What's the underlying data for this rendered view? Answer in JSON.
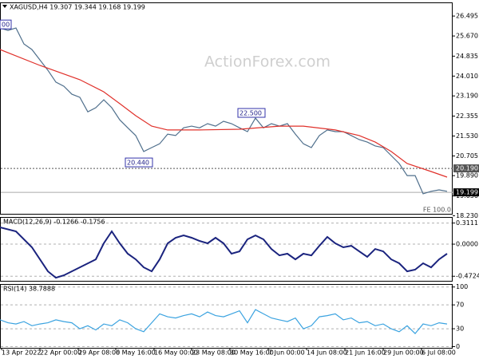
{
  "chart_data": [
    {
      "type": "line",
      "title": "XAGUSD,H4 19.307 19.344 19.168 19.199",
      "watermark": "ActionForex.com",
      "fe_label": "FE 100.0",
      "xlim": [
        0,
        56.7
      ],
      "ylim": [
        18.31,
        27.06
      ],
      "grid": false,
      "yticks": [
        26.495,
        {
          "value": 25.67,
          "label": "25.670"
        },
        24.835,
        {
          "value": 24.01,
          "label": "24.010"
        },
        {
          "value": 23.19,
          "label": "23.190"
        },
        22.355,
        {
          "value": 21.53,
          "label": "21.530"
        },
        20.705,
        {
          "value": 19.89,
          "label": "19.890"
        },
        {
          "value": 19.05,
          "label": "19.050"
        },
        {
          "value": 18.23,
          "label": "18.230"
        }
      ],
      "hlines": [
        {
          "value": 20.19,
          "label": "20.190",
          "style": "dotted",
          "color": "#555555"
        },
        {
          "value": 19.199,
          "label": "19.199",
          "style": "solid",
          "color": "#000000"
        }
      ],
      "annotations": [
        {
          "text": "00",
          "x": 0,
          "y": 26.13
        },
        {
          "text": "20.440",
          "x": 15.7,
          "y": 20.42
        },
        {
          "text": "22.500",
          "x": 29.8,
          "y": 22.47
        }
      ],
      "series": [
        {
          "name": "XAGUSD",
          "color": "#4f6f8c",
          "x": [
            0,
            1,
            2,
            3,
            4,
            5,
            6,
            7,
            8,
            9,
            10,
            11,
            12,
            13,
            14,
            15,
            16,
            17,
            18,
            19,
            20,
            21,
            22,
            23,
            24,
            25,
            26,
            27,
            28,
            29,
            30,
            31,
            32,
            33,
            34,
            35,
            36,
            37,
            38,
            39,
            40,
            41,
            42,
            43,
            44,
            45,
            46,
            47,
            48,
            49,
            50,
            51,
            52,
            53,
            54,
            55,
            56
          ],
          "values": [
            26.0,
            25.9,
            26.0,
            25.34,
            25.11,
            24.68,
            24.25,
            23.76,
            23.59,
            23.26,
            23.13,
            22.53,
            22.7,
            23.03,
            22.7,
            22.2,
            21.87,
            21.55,
            20.89,
            21.05,
            21.21,
            21.61,
            21.55,
            21.87,
            21.94,
            21.87,
            22.04,
            21.94,
            22.14,
            22.04,
            21.87,
            21.71,
            22.27,
            21.87,
            22.04,
            21.94,
            22.04,
            21.61,
            21.21,
            21.05,
            21.55,
            21.78,
            21.71,
            21.71,
            21.55,
            21.38,
            21.28,
            21.12,
            21.05,
            20.72,
            20.39,
            19.89,
            19.89,
            19.14,
            19.24,
            19.3,
            19.24
          ]
        },
        {
          "name": "MA",
          "color": "#e0302a",
          "x": [
            0,
            5,
            10,
            13,
            15,
            17,
            19,
            21,
            25,
            30,
            35,
            38,
            42,
            45,
            47,
            49,
            51,
            54,
            56
          ],
          "values": [
            25.11,
            24.45,
            23.86,
            23.36,
            22.87,
            22.37,
            21.94,
            21.78,
            21.78,
            21.81,
            21.94,
            21.94,
            21.78,
            21.55,
            21.28,
            20.89,
            20.39,
            20.06,
            19.83
          ]
        }
      ]
    },
    {
      "type": "line",
      "title": "MACD(12,26,9) -0.1266 -0.1756",
      "xlim": [
        0,
        56.7
      ],
      "ylim": [
        -0.54,
        0.4
      ],
      "grid": true,
      "yticks": [
        {
          "value": 0.3111,
          "label": "0.3111"
        },
        {
          "value": 0,
          "label": "0.0000"
        },
        {
          "value": -0.4724,
          "label": "-0.4724"
        }
      ],
      "series": [
        {
          "name": "MACD",
          "color": "#1a237e",
          "x": [
            0,
            2,
            4,
            6,
            7,
            8,
            10,
            12,
            13,
            14,
            15,
            16,
            17,
            18,
            19,
            20,
            21,
            22,
            23,
            24,
            25,
            26,
            27,
            28,
            29,
            30,
            31,
            32,
            33,
            34,
            35,
            36,
            37,
            38,
            39,
            40,
            41,
            42,
            43,
            44,
            45,
            46,
            47,
            48,
            49,
            50,
            51,
            52,
            53,
            54,
            55,
            56
          ],
          "values": [
            0.247,
            0.188,
            -0.047,
            -0.4,
            -0.494,
            -0.459,
            -0.341,
            -0.224,
            0.012,
            0.188,
            0.012,
            -0.141,
            -0.224,
            -0.341,
            -0.4,
            -0.224,
            0.012,
            0.094,
            0.129,
            0.094,
            0.047,
            0.012,
            0.094,
            0.012,
            -0.141,
            -0.106,
            0.071,
            0.129,
            0.071,
            -0.071,
            -0.165,
            -0.141,
            -0.224,
            -0.141,
            -0.165,
            -0.024,
            0.106,
            0.012,
            -0.047,
            -0.024,
            -0.106,
            -0.188,
            -0.071,
            -0.106,
            -0.224,
            -0.282,
            -0.4,
            -0.376,
            -0.282,
            -0.341,
            -0.224,
            -0.141
          ]
        }
      ]
    },
    {
      "type": "line",
      "title": "RSI(14) 38.7888",
      "xlim": [
        0,
        56.7
      ],
      "ylim": [
        -2,
        105
      ],
      "grid": true,
      "yticks": [
        100,
        70,
        30,
        0
      ],
      "xticks": [
        {
          "value": 0.2,
          "label": "13 Apr 2022"
        },
        {
          "value": 5.0,
          "label": "22 Apr 00:00"
        },
        {
          "value": 9.8,
          "label": "29 Apr 08:00"
        },
        {
          "value": 14.5,
          "label": "6 May 16:00"
        },
        {
          "value": 19.3,
          "label": "16 May 00:00"
        },
        {
          "value": 24.0,
          "label": "23 May 08:00"
        },
        {
          "value": 28.8,
          "label": "30 May 16:00"
        },
        {
          "value": 33.6,
          "label": "7 Jun 00:00"
        },
        {
          "value": 38.4,
          "label": "14 Jun 08:00"
        },
        {
          "value": 43.2,
          "label": "21 Jun 16:00"
        },
        {
          "value": 48.0,
          "label": "29 Jun 00:00"
        },
        {
          "value": 52.8,
          "label": "6 Jul 08:00"
        }
      ],
      "series": [
        {
          "name": "RSI",
          "color": "#3ba3e0",
          "x": [
            0,
            1,
            2,
            3,
            4,
            5,
            6,
            7,
            8,
            9,
            10,
            11,
            12,
            13,
            14,
            15,
            16,
            17,
            18,
            19,
            20,
            21,
            22,
            23,
            24,
            25,
            26,
            27,
            28,
            29,
            30,
            31,
            32,
            33,
            34,
            35,
            36,
            37,
            38,
            39,
            40,
            41,
            42,
            43,
            44,
            45,
            46,
            47,
            48,
            49,
            50,
            51,
            52,
            53,
            54,
            55,
            56
          ],
          "values": [
            45,
            40,
            38,
            42,
            35,
            38,
            40,
            45,
            42,
            40,
            30,
            35,
            28,
            38,
            35,
            45,
            40,
            30,
            25,
            40,
            55,
            50,
            48,
            52,
            55,
            50,
            58,
            52,
            50,
            55,
            60,
            40,
            62,
            55,
            48,
            45,
            42,
            48,
            30,
            35,
            50,
            52,
            55,
            45,
            48,
            40,
            42,
            35,
            38,
            30,
            25,
            35,
            22,
            38,
            35,
            40,
            38
          ]
        }
      ]
    }
  ]
}
